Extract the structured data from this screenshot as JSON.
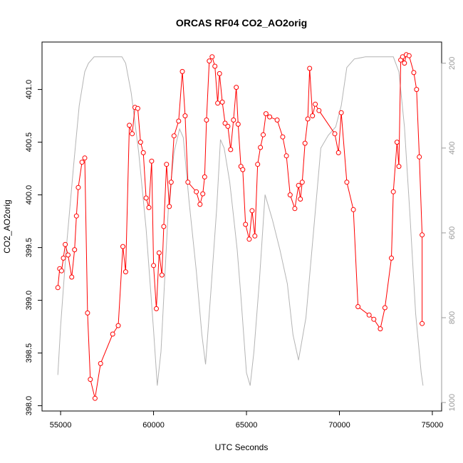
{
  "chart_data": {
    "type": "line",
    "title": "ORCAS RF04 CO2_AO2orig",
    "xlabel": "UTC Seconds",
    "ylabel": "CO2_AO2orig",
    "xlim": [
      54000,
      75500
    ],
    "ylim": [
      397.95,
      401.45
    ],
    "y2lim": [
      1020,
      150
    ],
    "x_ticks": [
      55000,
      60000,
      65000,
      70000,
      75000
    ],
    "y_ticks": [
      398.0,
      398.5,
      399.0,
      399.5,
      400.0,
      400.5,
      401.0
    ],
    "y2_ticks": [
      200,
      400,
      600,
      800,
      1000
    ],
    "x_tick_labels": [
      "55000",
      "60000",
      "65000",
      "70000",
      "75000"
    ],
    "y_tick_labels": [
      "398.0",
      "398.5",
      "399.0",
      "399.5",
      "400.0",
      "400.5",
      "401.0"
    ],
    "y2_tick_labels": [
      "200",
      "400",
      "600",
      "800",
      "1000"
    ],
    "grid": false,
    "series": [
      {
        "color": "#ff0000",
        "marker": "circle",
        "x": [
          54850,
          54950,
          55050,
          55150,
          55250,
          55400,
          55600,
          55750,
          55850,
          55950,
          56150,
          56300,
          56450,
          56600,
          56850,
          57150,
          57800,
          58100,
          58350,
          58500,
          58700,
          58850,
          59000,
          59150,
          59300,
          59450,
          59600,
          59750,
          59900,
          60000,
          60150,
          60300,
          60450,
          60550,
          60700,
          60850,
          60950,
          61100,
          61350,
          61550,
          61700,
          61850,
          62300,
          62500,
          62650,
          62750,
          62850,
          63000,
          63150,
          63300,
          63450,
          63550,
          63700,
          63850,
          64000,
          64150,
          64300,
          64450,
          64550,
          64700,
          64800,
          64950,
          65150,
          65300,
          65450,
          65600,
          65750,
          65900,
          66050,
          66250,
          66650,
          66950,
          67150,
          67350,
          67600,
          67800,
          67900,
          68000,
          68150,
          68300,
          68400,
          68550,
          68700,
          68900,
          69750,
          69950,
          70100,
          70400,
          70750,
          71000,
          71600,
          71850,
          72200,
          72450,
          72800,
          72900,
          73100,
          73200,
          73300,
          73400,
          73500,
          73600,
          73750,
          74000,
          74150,
          74300,
          74450
        ],
        "y": [
          399.12,
          399.3,
          399.28,
          399.4,
          399.53,
          399.43,
          399.22,
          399.48,
          399.8,
          400.07,
          400.31,
          400.35,
          398.88,
          398.25,
          398.07,
          398.4,
          398.68,
          398.76,
          399.51,
          399.27,
          400.66,
          400.58,
          400.83,
          400.82,
          400.5,
          400.4,
          399.97,
          399.88,
          400.32,
          399.33,
          398.92,
          399.45,
          399.24,
          399.7,
          400.29,
          399.89,
          400.12,
          400.56,
          400.7,
          401.17,
          400.75,
          400.12,
          400.03,
          399.91,
          400.01,
          400.17,
          400.71,
          401.27,
          401.31,
          401.22,
          400.87,
          401.15,
          400.88,
          400.68,
          400.65,
          400.43,
          400.71,
          401.02,
          400.67,
          400.27,
          400.24,
          399.72,
          399.58,
          399.85,
          399.61,
          400.29,
          400.45,
          400.57,
          400.77,
          400.74,
          400.71,
          400.55,
          400.37,
          400.0,
          399.87,
          400.09,
          399.96,
          400.12,
          400.49,
          400.72,
          401.2,
          400.75,
          400.86,
          400.8,
          400.58,
          400.4,
          400.78,
          400.12,
          399.86,
          398.94,
          398.86,
          398.82,
          398.73,
          398.93,
          399.4,
          400.03,
          400.5,
          400.27,
          401.28,
          401.31,
          401.25,
          401.33,
          401.32,
          401.16,
          401.0,
          400.36,
          399.62
        ],
        "note_end": [
          74450,
          398.78
        ]
      },
      {
        "color": "#b4b4b4",
        "axis": "right",
        "marker": "none",
        "x": [
          54850,
          55000,
          55300,
          55700,
          56000,
          56300,
          56500,
          56800,
          57200,
          57800,
          58300,
          58500,
          58800,
          59200,
          59600,
          60000,
          60200,
          60400,
          60600,
          60800,
          61100,
          61400,
          61600,
          61900,
          62300,
          62600,
          62800,
          63100,
          63400,
          63600,
          63800,
          64100,
          64300,
          64500,
          64700,
          65000,
          65200,
          65400,
          65700,
          66000,
          66400,
          66800,
          67200,
          67500,
          67800,
          68200,
          68600,
          69000,
          69400,
          69800,
          70100,
          70400,
          70800,
          71400,
          72000,
          72600,
          72900,
          73200,
          73500,
          73800,
          74100,
          74400,
          74500
        ],
        "y": [
          935,
          820,
          640,
          440,
          300,
          220,
          200,
          185,
          185,
          185,
          185,
          200,
          270,
          410,
          590,
          830,
          960,
          880,
          710,
          540,
          410,
          355,
          375,
          520,
          690,
          840,
          910,
          730,
          540,
          380,
          400,
          480,
          560,
          640,
          750,
          930,
          960,
          880,
          710,
          510,
          570,
          640,
          720,
          840,
          900,
          800,
          600,
          400,
          370,
          350,
          300,
          210,
          190,
          185,
          185,
          185,
          185,
          220,
          350,
          560,
          790,
          930,
          960
        ]
      }
    ]
  }
}
